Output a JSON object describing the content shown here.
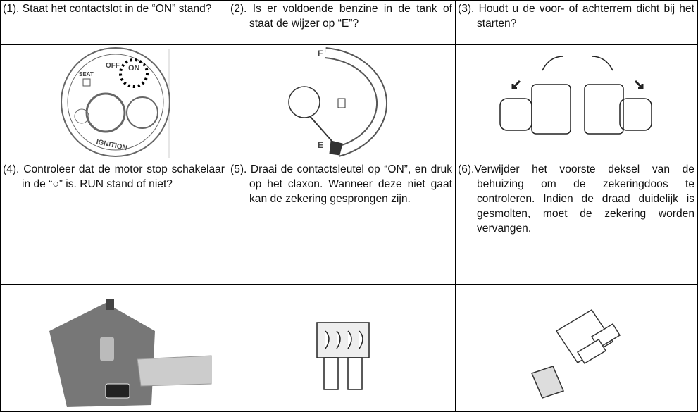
{
  "table": {
    "rows": [
      [
        "(1). Staat het contactslot in de “ON” stand?",
        "(2). Is er voldoende benzine in de tank of staat de wijzer op “E”?",
        "(3). Houdt u de voor- of achterrem dicht bij het starten?"
      ],
      [
        "(4). Controleer dat de motor stop schakelaar in de “○” is. RUN stand of niet?",
        "(5). Draai de contactsleutel op “ON”, en druk op het claxon. Wanneer deze niet gaat kan de zekering gesprongen zijn.",
        "(6).Verwijder het voorste deksel van de behuizing om de zekeringdoos te controleren. Indien de draad duidelijk is gesmolten, moet de zekering worden vervangen."
      ]
    ]
  },
  "images": {
    "ignition": {
      "off": "OFF",
      "on": "ON",
      "seat": "SEAT",
      "ignition": "IGNITION"
    },
    "gauge": {
      "full": "F",
      "empty": "E"
    }
  }
}
